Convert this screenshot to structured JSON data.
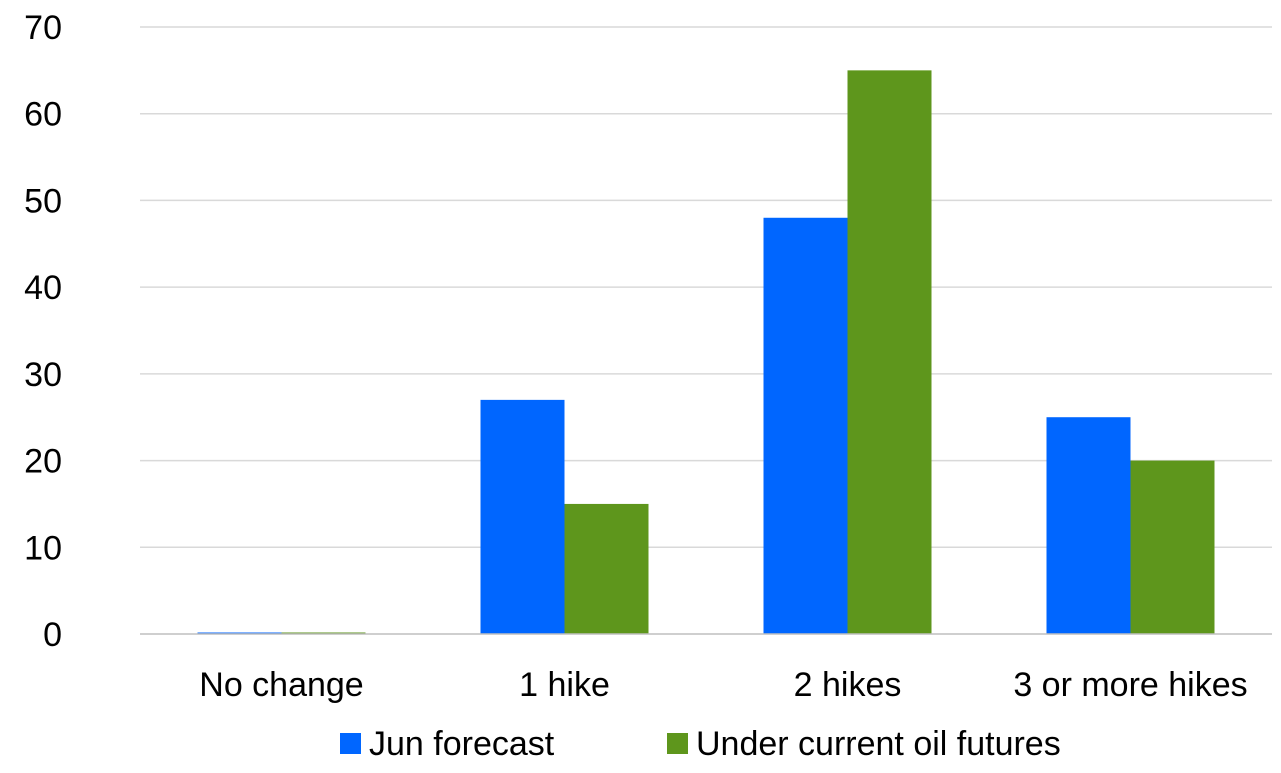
{
  "chart_data": {
    "type": "bar",
    "title": "",
    "xlabel": "",
    "ylabel": "",
    "categories": [
      "No change",
      "1 hike",
      "2 hikes",
      "3 or more hikes"
    ],
    "series": [
      {
        "name": "Jun forecast",
        "color": "#0066ff",
        "values": [
          0,
          27,
          48,
          25
        ]
      },
      {
        "name": "Under current oil futures",
        "color": "#5e961c",
        "values": [
          0,
          15,
          65,
          20
        ]
      }
    ],
    "ylim": [
      0,
      70
    ],
    "yticks": [
      0,
      10,
      20,
      30,
      40,
      50,
      60,
      70
    ],
    "grid": true,
    "legend_position": "bottom"
  }
}
